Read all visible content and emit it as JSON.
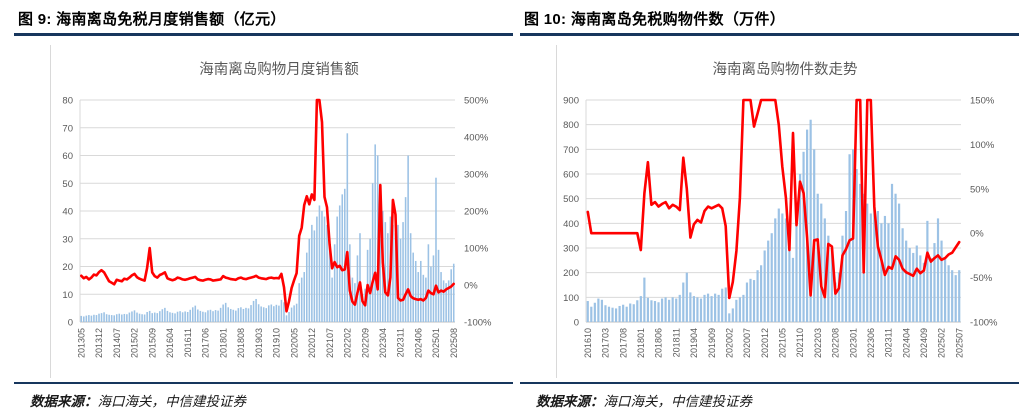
{
  "figures": [
    {
      "header": "图 9: 海南离岛免税月度销售额（亿元）",
      "source_label": "数据来源：",
      "source": "海口海关，中信建投证券"
    },
    {
      "header": "图 10: 海南离岛免税购物件数（万件）",
      "source_label": "数据来源：",
      "source": "海口海关，中信建投证券"
    }
  ],
  "colors": {
    "bar_fill": "#9CC2E5",
    "line_stroke": "#FF0000",
    "rule_navy": "#17365D",
    "gridline": "#D9D9D9",
    "axis_text": "#595959"
  },
  "chart_data": [
    {
      "type": "bar+line",
      "title": "海南离岛购物月度销售额",
      "x_start": "201305",
      "x_end": "202508",
      "x_tick_every": 7,
      "x_tick_labels": [
        "201305",
        "201312",
        "201407",
        "201502",
        "201509",
        "201604",
        "201611",
        "201706",
        "201801",
        "201808",
        "201903",
        "201910",
        "202005",
        "202012",
        "202107",
        "202202",
        "202209",
        "202304",
        "202311",
        "202406",
        "202501",
        "202508"
      ],
      "left_axis": {
        "min": 0,
        "max": 80,
        "step": 10,
        "ticks": [
          "0",
          "10",
          "20",
          "30",
          "40",
          "50",
          "60",
          "70",
          "80"
        ]
      },
      "right_axis": {
        "min": -100,
        "max": 500,
        "step": 100,
        "suffix": "%",
        "ticks": [
          "-100%",
          "0%",
          "100%",
          "200%",
          "300%",
          "400%",
          "500%"
        ]
      },
      "bars_axis": "left",
      "line_axis": "right",
      "legend": "none",
      "bar_values": [
        2.2,
        2.0,
        2.3,
        2.5,
        2.3,
        2.6,
        2.5,
        3.0,
        3.2,
        3.5,
        2.8,
        2.6,
        2.5,
        2.4,
        2.8,
        3.0,
        2.7,
        2.9,
        2.8,
        3.4,
        3.8,
        4.2,
        3.4,
        3.0,
        2.8,
        2.7,
        3.6,
        4.0,
        3.2,
        3.4,
        3.2,
        3.9,
        4.6,
        5.1,
        4.0,
        3.5,
        3.3,
        3.1,
        3.7,
        3.9,
        3.5,
        3.8,
        3.6,
        4.4,
        5.3,
        5.9,
        4.5,
        4.0,
        3.7,
        3.5,
        4.2,
        4.4,
        3.9,
        4.3,
        4.1,
        5.1,
        6.3,
        6.9,
        5.3,
        4.7,
        4.4,
        4.1,
        5.0,
        5.3,
        4.7,
        5.1,
        4.9,
        6.1,
        7.6,
        8.3,
        6.4,
        5.6,
        5.3,
        5.0,
        6.0,
        6.3,
        5.7,
        6.2,
        5.9,
        8.0,
        7.1,
        2.4,
        3.6,
        5.2,
        6.0,
        6.6,
        14,
        16,
        18,
        25,
        30,
        35,
        33,
        38,
        42,
        40,
        38,
        35,
        30,
        16,
        28,
        38,
        42,
        46,
        48,
        68,
        28,
        16,
        14,
        24,
        32,
        10,
        12,
        26,
        30,
        50,
        64,
        60,
        45,
        40,
        36,
        32,
        38,
        35,
        32,
        35,
        30,
        36,
        45,
        60,
        32,
        25,
        22,
        18,
        22,
        17,
        16,
        28,
        20,
        24,
        52,
        26,
        18,
        15,
        14,
        15,
        19,
        21
      ],
      "line_values": [
        25,
        18,
        22,
        15,
        20,
        28,
        26,
        35,
        40,
        34,
        22,
        10,
        6,
        2,
        14,
        12,
        10,
        17,
        15,
        20,
        26,
        30,
        21,
        17,
        14,
        12,
        46,
        100,
        34,
        24,
        20,
        27,
        30,
        34,
        18,
        15,
        13,
        15,
        20,
        18,
        15,
        14,
        16,
        18,
        20,
        22,
        15,
        13,
        12,
        14,
        16,
        15,
        12,
        13,
        14,
        15,
        24,
        20,
        18,
        16,
        15,
        14,
        18,
        20,
        17,
        16,
        18,
        20,
        22,
        25,
        20,
        18,
        17,
        16,
        19,
        20,
        18,
        19,
        18,
        30,
        -6,
        -71,
        -44,
        -8,
        13,
        32,
        133,
        155,
        216,
        240,
        218,
        245,
        230,
        560,
        640,
        440,
        238,
        210,
        110,
        45,
        62,
        48,
        52,
        40,
        42,
        89,
        -15,
        -45,
        -53,
        -22,
        7,
        -44,
        -55,
        0,
        -22,
        9,
        33,
        -12,
        270,
        60,
        -20,
        -28,
        20,
        230,
        190,
        -35,
        -42,
        -40,
        -25,
        -12,
        -30,
        -36,
        -38,
        -40,
        -38,
        -42,
        -35,
        -15,
        -22,
        -25,
        -2,
        -20,
        -15,
        -18,
        -12,
        -8,
        -4,
        3
      ]
    },
    {
      "type": "bar+line",
      "title": "海南离岛购物件数走势",
      "x_start": "201610",
      "x_end": "202507",
      "x_tick_every": 5,
      "x_tick_labels": [
        "201610",
        "201703",
        "201708",
        "201801",
        "201806",
        "201811",
        "201904",
        "201909",
        "202002",
        "202007",
        "202012",
        "202105",
        "202110",
        "202203",
        "202208",
        "202301",
        "202306",
        "202311",
        "202404",
        "202409",
        "202502",
        "202507"
      ],
      "left_axis": {
        "min": 0,
        "max": 900,
        "step": 100,
        "ticks": [
          "0",
          "100",
          "200",
          "300",
          "400",
          "500",
          "600",
          "700",
          "800",
          "900"
        ]
      },
      "right_axis": {
        "min": -100,
        "max": 150,
        "step": 50,
        "suffix": "%",
        "ticks": [
          "-100%",
          "-50%",
          "0%",
          "50%",
          "100%",
          "150%"
        ]
      },
      "bars_axis": "left",
      "line_axis": "right",
      "legend": "none",
      "bar_values": [
        85,
        62,
        78,
        95,
        90,
        68,
        62,
        58,
        55,
        65,
        70,
        62,
        75,
        72,
        88,
        105,
        180,
        98,
        88,
        85,
        80,
        95,
        100,
        90,
        100,
        95,
        110,
        160,
        200,
        120,
        105,
        100,
        95,
        110,
        115,
        105,
        115,
        110,
        135,
        140,
        35,
        55,
        90,
        100,
        110,
        160,
        175,
        170,
        210,
        230,
        290,
        330,
        360,
        420,
        460,
        440,
        420,
        380,
        260,
        430,
        600,
        690,
        780,
        820,
        700,
        520,
        480,
        420,
        350,
        300,
        160,
        200,
        350,
        450,
        680,
        700,
        620,
        560,
        520,
        480,
        440,
        480,
        450,
        400,
        430,
        400,
        560,
        520,
        480,
        380,
        330,
        300,
        280,
        310,
        270,
        240,
        410,
        260,
        320,
        420,
        330,
        260,
        230,
        210,
        190,
        210
      ],
      "line_values": [
        24,
        0,
        0,
        0,
        0,
        0,
        0,
        0,
        0,
        0,
        0,
        0,
        0,
        0,
        0,
        -19,
        45,
        80,
        32,
        35,
        30,
        33,
        35,
        28,
        32,
        30,
        26,
        85,
        50,
        -5,
        10,
        15,
        12,
        25,
        30,
        28,
        30,
        32,
        28,
        8,
        -73,
        -55,
        -20,
        40,
        165,
        185,
        190,
        120,
        135,
        175,
        180,
        160,
        290,
        240,
        122,
        75,
        40,
        -19,
        113,
        9,
        58,
        45,
        -5,
        -70,
        -8,
        -7,
        -60,
        -72,
        -12,
        -15,
        -68,
        -62,
        -25,
        -18,
        -8,
        -6,
        380,
        350,
        -44,
        320,
        300,
        30,
        -15,
        -30,
        -47,
        -38,
        -40,
        -26,
        -30,
        -40,
        -44,
        -46,
        -48,
        -40,
        -45,
        -42,
        -22,
        -32,
        -28,
        -25,
        -30,
        -28,
        -24,
        -22,
        -16,
        -10
      ]
    }
  ]
}
